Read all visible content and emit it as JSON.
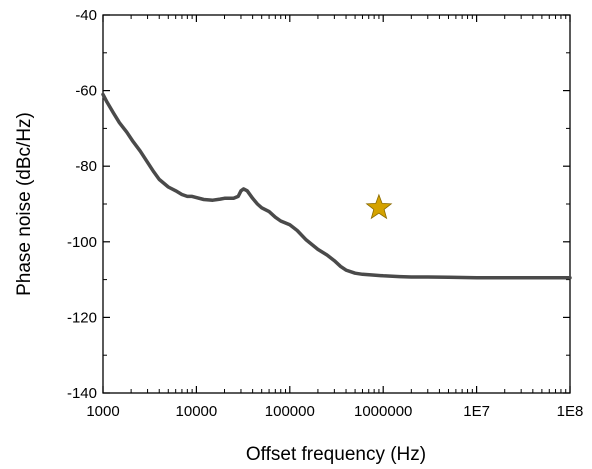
{
  "chart_data": {
    "type": "line",
    "title": "",
    "xlabel": "Offset frequency (Hz)",
    "ylabel": "Phase noise (dBc/Hz)",
    "xscale": "log",
    "xlim": [
      1000,
      100000000
    ],
    "ylim": [
      -140,
      -40
    ],
    "grid": false,
    "x_tick_values": [
      1000,
      10000,
      100000,
      1000000,
      10000000,
      100000000
    ],
    "x_tick_labels": [
      "1000",
      "10000",
      "100000",
      "1000000",
      "1E7",
      "1E8"
    ],
    "y_tick_values": [
      -140,
      -120,
      -100,
      -80,
      -60,
      -40
    ],
    "y_tick_labels": [
      "-140",
      "-120",
      "-100",
      "-80",
      "-60",
      "-40"
    ],
    "line_color": "#4a4a4a",
    "marker_color": "#d4a200",
    "series": [
      {
        "x": [
          1000,
          1100,
          1300,
          1500,
          1800,
          2100,
          2500,
          3000,
          3500,
          4000,
          5000,
          6000,
          7000,
          8000,
          9000,
          10000,
          12000,
          15000,
          18000,
          20000,
          25000,
          28000,
          30000,
          32000,
          35000,
          40000,
          45000,
          50000,
          60000,
          70000,
          80000,
          100000,
          120000,
          150000,
          200000,
          250000,
          300000,
          350000,
          400000,
          500000,
          600000,
          800000,
          1000000,
          1500000,
          2000000,
          3000000,
          5000000,
          10000000,
          20000000,
          50000000,
          100000000
        ],
        "y": [
          -61,
          -63,
          -66,
          -68.5,
          -71,
          -73.5,
          -76,
          -79,
          -81.5,
          -83.5,
          -85.5,
          -86.5,
          -87.5,
          -88,
          -88,
          -88.3,
          -88.8,
          -89,
          -88.7,
          -88.5,
          -88.5,
          -88,
          -86.5,
          -86,
          -86.5,
          -88.5,
          -90,
          -91,
          -92,
          -93.5,
          -94.5,
          -95.5,
          -97,
          -99.5,
          -102,
          -103.5,
          -105,
          -106.5,
          -107.5,
          -108.3,
          -108.6,
          -108.8,
          -109,
          -109.2,
          -109.3,
          -109.3,
          -109.4,
          -109.5,
          -109.5,
          -109.5,
          -109.5
        ]
      },
      {
        "type": "scatter",
        "marker": "star",
        "x": [
          900000
        ],
        "y": [
          -91
        ]
      }
    ]
  }
}
